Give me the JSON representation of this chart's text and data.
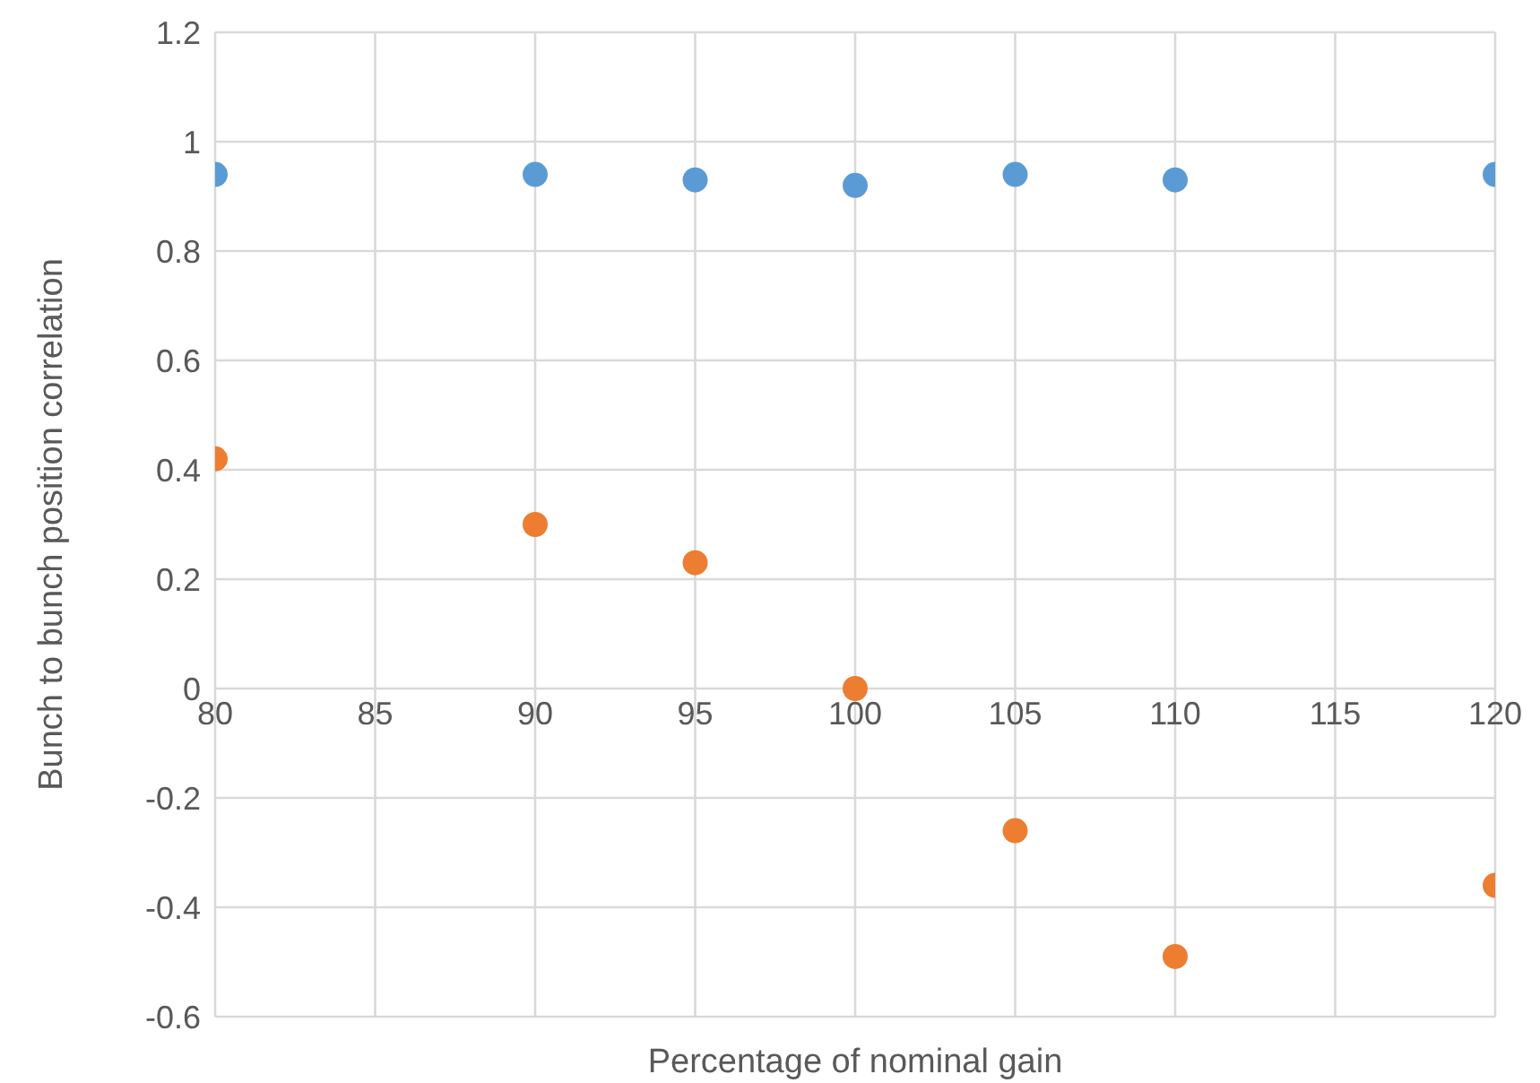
{
  "chart_data": {
    "type": "scatter",
    "xlabel": "Percentage of nominal gain",
    "ylabel": "Bunch to bunch position correlation",
    "x": [
      80,
      90,
      95,
      100,
      105,
      110,
      120
    ],
    "series": [
      {
        "color": "#5b9bd5",
        "values": [
          0.94,
          0.94,
          0.93,
          0.92,
          0.94,
          0.93,
          0.94
        ]
      },
      {
        "color": "#ed7d31",
        "values": [
          0.42,
          0.3,
          0.23,
          0,
          -0.26,
          -0.49,
          -0.36
        ]
      }
    ],
    "xlim": [
      80,
      120
    ],
    "xticks": [
      80,
      85,
      90,
      95,
      100,
      105,
      110,
      115,
      120
    ],
    "ylim": [
      -0.6,
      1.2
    ],
    "yticks": [
      -0.6,
      -0.4,
      -0.2,
      0,
      0.2,
      0.4,
      0.6,
      0.8,
      1,
      1.2
    ],
    "grid": true,
    "marker": "circle"
  }
}
